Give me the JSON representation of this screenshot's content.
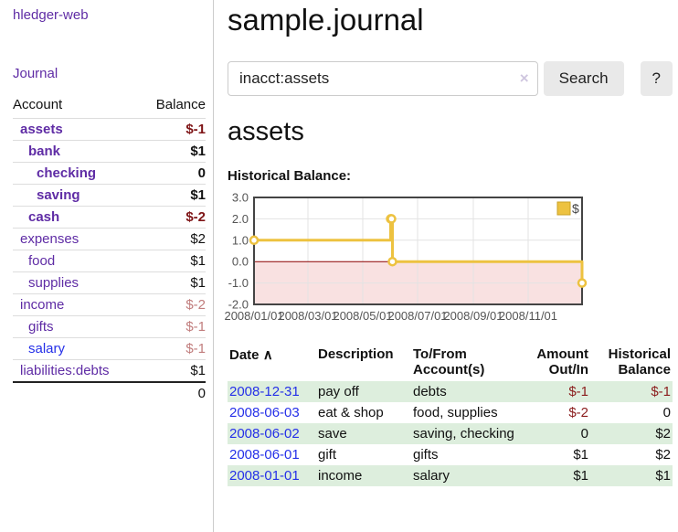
{
  "colors": {
    "link_purple": "#5f2ca5",
    "link_blue": "#2530e8",
    "negative_strong": "#7e1416",
    "negative_soft": "#c17d7d",
    "stripe_green": "#ddeedd",
    "chart_line_gold": "#edc240",
    "chart_zero_line_red": "#8b0000",
    "chart_negative_fill": "#f9e1e1"
  },
  "sidebar": {
    "brand": "hledger-web",
    "journal_link": "Journal",
    "accounts": {
      "header": {
        "account": "Account",
        "balance": "Balance"
      },
      "rows": [
        {
          "name": "assets",
          "balance": "$-1",
          "depth": 1,
          "active": true,
          "balance_class": "neg-strong",
          "link_class": ""
        },
        {
          "name": "bank",
          "balance": "$1",
          "depth": 2,
          "active": true,
          "balance_class": "",
          "link_class": ""
        },
        {
          "name": "checking",
          "balance": "0",
          "depth": 3,
          "active": true,
          "balance_class": "",
          "link_class": ""
        },
        {
          "name": "saving",
          "balance": "$1",
          "depth": 3,
          "active": true,
          "balance_class": "",
          "link_class": ""
        },
        {
          "name": "cash",
          "balance": "$-2",
          "depth": 2,
          "active": true,
          "balance_class": "neg-strong",
          "link_class": ""
        },
        {
          "name": "expenses",
          "balance": "$2",
          "depth": 1,
          "active": false,
          "balance_class": "",
          "link_class": ""
        },
        {
          "name": "food",
          "balance": "$1",
          "depth": 2,
          "active": false,
          "balance_class": "",
          "link_class": ""
        },
        {
          "name": "supplies",
          "balance": "$1",
          "depth": 2,
          "active": false,
          "balance_class": "",
          "link_class": ""
        },
        {
          "name": "income",
          "balance": "$-2",
          "depth": 1,
          "active": false,
          "balance_class": "neg-soft",
          "link_class": ""
        },
        {
          "name": "gifts",
          "balance": "$-1",
          "depth": 2,
          "active": false,
          "balance_class": "neg-soft",
          "link_class": ""
        },
        {
          "name": "salary",
          "balance": "$-1",
          "depth": 2,
          "active": false,
          "balance_class": "neg-soft",
          "link_class": "unvisited"
        },
        {
          "name": "liabilities:debts",
          "balance": "$1",
          "depth": 1,
          "active": false,
          "balance_class": "",
          "link_class": "",
          "last": true
        }
      ],
      "total": "0"
    }
  },
  "main": {
    "title": "sample.journal",
    "search": {
      "value": "inacct:assets",
      "clear_icon": "×",
      "search_button": "Search",
      "help_button": "?"
    },
    "account_heading": "assets",
    "chart_heading": "Historical Balance:",
    "register": {
      "headers": {
        "date": "Date",
        "sort_icon": "∧",
        "description": "Description",
        "accounts": "To/From Account(s)",
        "amount": "Amount Out/In",
        "balance": "Historical Balance"
      },
      "rows": [
        {
          "date": "2008-12-31",
          "description": "pay off",
          "accounts": "debts",
          "amount": "$-1",
          "balance": "$-1",
          "amount_neg": true,
          "balance_neg": true
        },
        {
          "date": "2008-06-03",
          "description": "eat & shop",
          "accounts": "food, supplies",
          "amount": "$-2",
          "balance": "0",
          "amount_neg": true,
          "balance_neg": false
        },
        {
          "date": "2008-06-02",
          "description": "save",
          "accounts": "saving, checking",
          "amount": "0",
          "balance": "$2",
          "amount_neg": false,
          "balance_neg": false
        },
        {
          "date": "2008-06-01",
          "description": "gift",
          "accounts": "gifts",
          "amount": "$1",
          "balance": "$2",
          "amount_neg": false,
          "balance_neg": false
        },
        {
          "date": "2008-01-01",
          "description": "income",
          "accounts": "salary",
          "amount": "$1",
          "balance": "$1",
          "amount_neg": false,
          "balance_neg": false
        }
      ]
    }
  },
  "chart_data": {
    "type": "line",
    "step": true,
    "title": "Historical Balance",
    "legend_label": "$",
    "legend_position": "top-right",
    "grid": true,
    "xlim": [
      "2008-01-01",
      "2008-12-31"
    ],
    "ylim": [
      -2.0,
      3.0
    ],
    "x_ticks": [
      {
        "date": "2008-01-01",
        "label": "2008/01/01"
      },
      {
        "date": "2008-03-01",
        "label": "2008/03/01"
      },
      {
        "date": "2008-05-01",
        "label": "2008/05/01"
      },
      {
        "date": "2008-07-01",
        "label": "2008/07/01"
      },
      {
        "date": "2008-09-01",
        "label": "2008/09/01"
      },
      {
        "date": "2008-11-01",
        "label": "2008/11/01"
      }
    ],
    "y_ticks": [
      3.0,
      2.0,
      1.0,
      0.0,
      -1.0,
      -2.0
    ],
    "series": [
      {
        "name": "$",
        "color": "#edc240",
        "points": [
          [
            "2008-01-01",
            1
          ],
          [
            "2008-06-01",
            2
          ],
          [
            "2008-06-02",
            2
          ],
          [
            "2008-06-03",
            0
          ],
          [
            "2008-12-31",
            -1
          ]
        ]
      }
    ],
    "zero_line_color": "#8b0000",
    "negative_fill": "#f9e1e1"
  }
}
